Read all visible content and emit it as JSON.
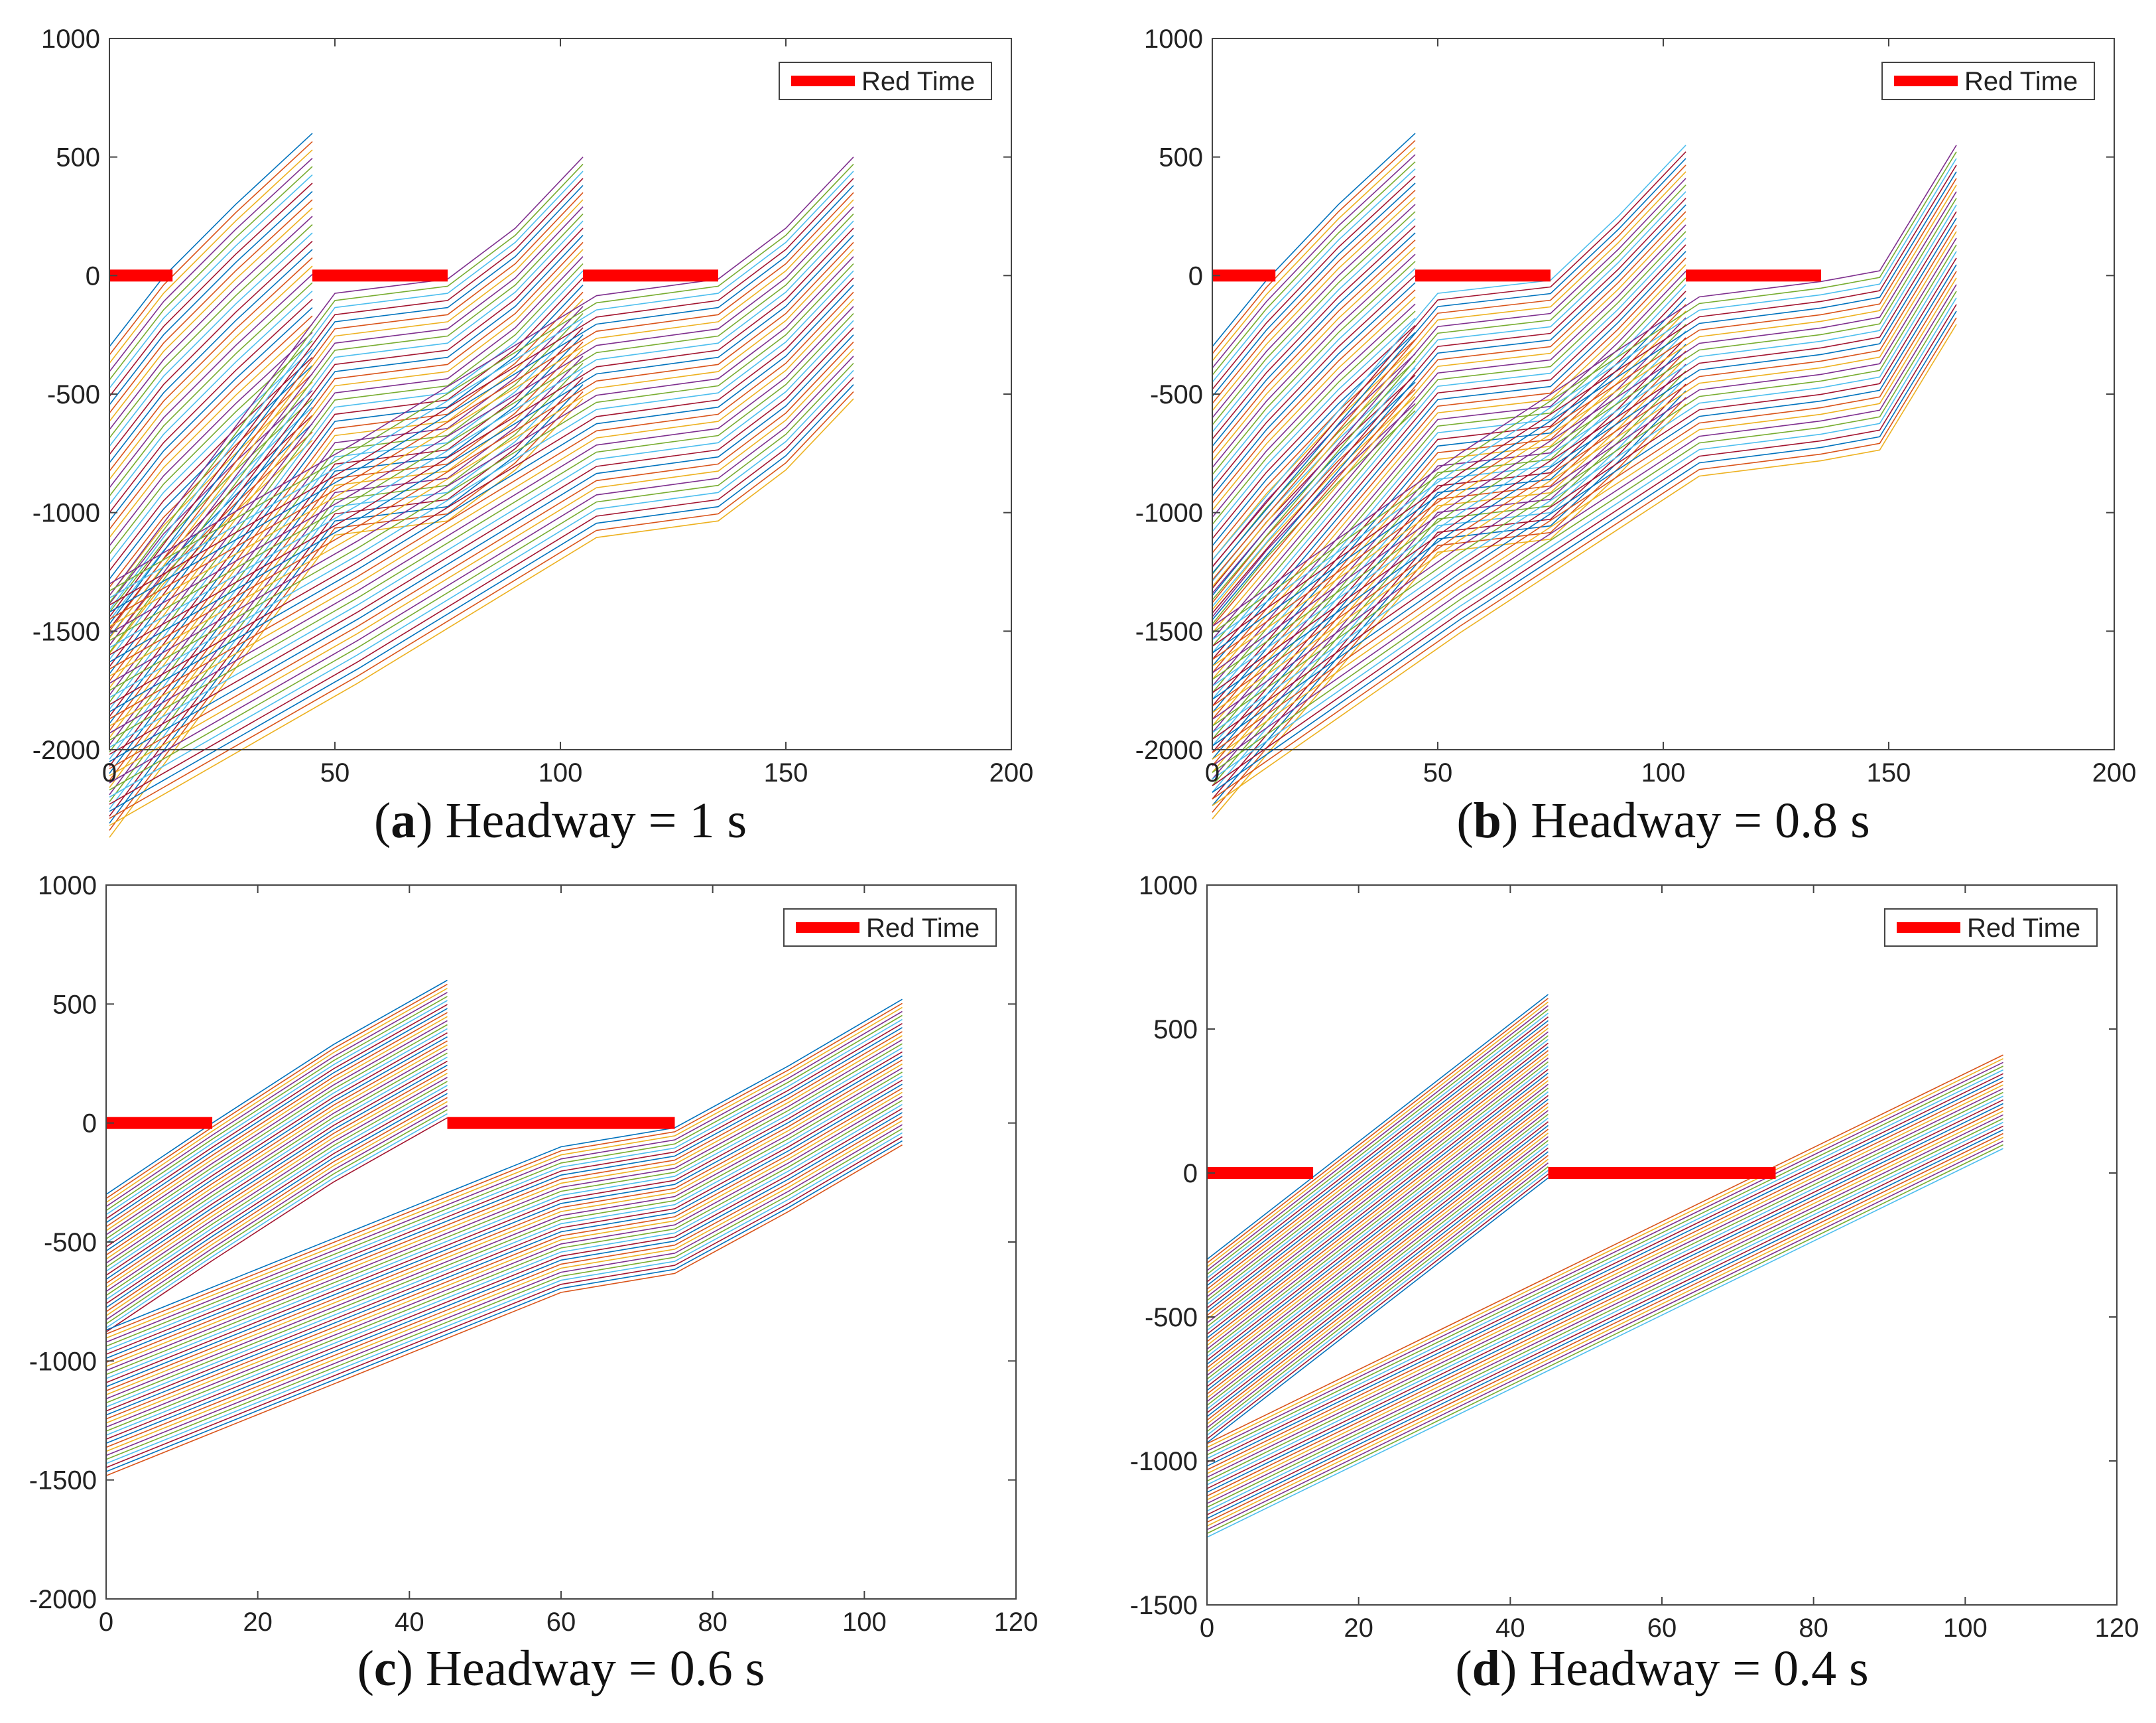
{
  "chart_data": [
    {
      "type": "line",
      "panel": "a",
      "caption_letter": "a",
      "caption_text": "Headway = 1 s",
      "xlim": [
        0,
        200
      ],
      "ylim": [
        -2000,
        1000
      ],
      "x_ticks": [
        0,
        50,
        100,
        150,
        200
      ],
      "y_ticks": [
        1000,
        500,
        0,
        -500,
        -1000,
        -1500,
        -2000
      ],
      "legend": {
        "label": "Red Time",
        "position": "top-right",
        "color": "#ff0000"
      },
      "red_intervals": [
        [
          0,
          14
        ],
        [
          45,
          75
        ],
        [
          105,
          135
        ]
      ],
      "groups": [
        {
          "count": 38,
          "spacing": 35,
          "polyline": [
            [
              0,
              -300
            ],
            [
              12,
              -5
            ],
            [
              28,
              300
            ],
            [
              45,
              600
            ]
          ]
        },
        {
          "count": 35,
          "spacing": 30,
          "polyline": [
            [
              0,
              -1350
            ],
            [
              50,
              -75
            ],
            [
              75,
              -15
            ],
            [
              90,
              200
            ],
            [
              105,
              500
            ]
          ]
        },
        {
          "count": 35,
          "spacing": 30,
          "polyline": [
            [
              0,
              -1300
            ],
            [
              55,
              -700
            ],
            [
              108,
              -85
            ],
            [
              135,
              -15
            ],
            [
              150,
              200
            ],
            [
              165,
              500
            ]
          ]
        }
      ]
    },
    {
      "type": "line",
      "panel": "b",
      "caption_letter": "b",
      "caption_text": "Headway = 0.8 s",
      "xlim": [
        0,
        200
      ],
      "ylim": [
        -2000,
        1000
      ],
      "x_ticks": [
        0,
        50,
        100,
        150,
        200
      ],
      "y_ticks": [
        1000,
        500,
        0,
        -500,
        -1000,
        -1500,
        -2000
      ],
      "legend": {
        "label": "Red Time",
        "position": "top-right",
        "color": "#ff0000"
      },
      "red_intervals": [
        [
          0,
          14
        ],
        [
          45,
          75
        ],
        [
          105,
          135
        ]
      ],
      "groups": [
        {
          "count": 40,
          "spacing": 30,
          "polyline": [
            [
              0,
              -300
            ],
            [
              12,
              -20
            ],
            [
              28,
              300
            ],
            [
              45,
              600
            ]
          ]
        },
        {
          "count": 40,
          "spacing": 28,
          "polyline": [
            [
              0,
              -1200
            ],
            [
              50,
              -75
            ],
            [
              75,
              -20
            ],
            [
              90,
              250
            ],
            [
              105,
              550
            ]
          ]
        },
        {
          "count": 28,
          "spacing": 28,
          "polyline": [
            [
              0,
              -1480
            ],
            [
              55,
              -750
            ],
            [
              108,
              -90
            ],
            [
              135,
              -25
            ],
            [
              148,
              20
            ],
            [
              165,
              550
            ]
          ]
        }
      ]
    },
    {
      "type": "line",
      "panel": "c",
      "caption_letter": "c",
      "caption_text": "Headway = 0.6 s",
      "xlim": [
        0,
        120
      ],
      "ylim": [
        -2000,
        1000
      ],
      "x_ticks": [
        0,
        20,
        40,
        60,
        80,
        100,
        120
      ],
      "y_ticks": [
        1000,
        500,
        0,
        -500,
        -1000,
        -1500,
        -2000
      ],
      "legend": {
        "label": "Red Time",
        "position": "top-right",
        "color": "#ff0000"
      },
      "red_intervals": [
        [
          0,
          14
        ],
        [
          45,
          75
        ]
      ],
      "groups": [
        {
          "count": 35,
          "spacing": 17,
          "polyline": [
            [
              0,
              -300
            ],
            [
              14,
              0
            ],
            [
              30,
              330
            ],
            [
              45,
              600
            ]
          ]
        },
        {
          "count": 37,
          "spacing": 17,
          "polyline": [
            [
              0,
              -870
            ],
            [
              60,
              -100
            ],
            [
              75,
              -20
            ],
            [
              90,
              240
            ],
            [
              105,
              520
            ]
          ]
        }
      ]
    },
    {
      "type": "line",
      "panel": "d",
      "caption_letter": "d",
      "caption_text": "Headway = 0.4 s",
      "xlim": [
        0,
        120
      ],
      "ylim": [
        -1500,
        1000
      ],
      "x_ticks": [
        0,
        20,
        40,
        60,
        80,
        100,
        120
      ],
      "y_ticks": [
        1000,
        500,
        0,
        -500,
        -1000,
        -1500
      ],
      "legend": {
        "label": "Red Time",
        "position": "top-right",
        "color": "#ff0000"
      },
      "red_intervals": [
        [
          0,
          14
        ],
        [
          45,
          75
        ]
      ],
      "groups": [
        {
          "count": 50,
          "spacing": 13,
          "polyline": [
            [
              0,
              -300
            ],
            [
              45,
              620
            ]
          ]
        },
        {
          "count": 26,
          "spacing": 13,
          "polyline": [
            [
              0,
              -940
            ],
            [
              105,
              410
            ]
          ]
        }
      ]
    }
  ],
  "series_colors": [
    "#0072bd",
    "#d95319",
    "#edb120",
    "#7e2f8e",
    "#77ac30",
    "#4dbeee",
    "#a2142f"
  ]
}
